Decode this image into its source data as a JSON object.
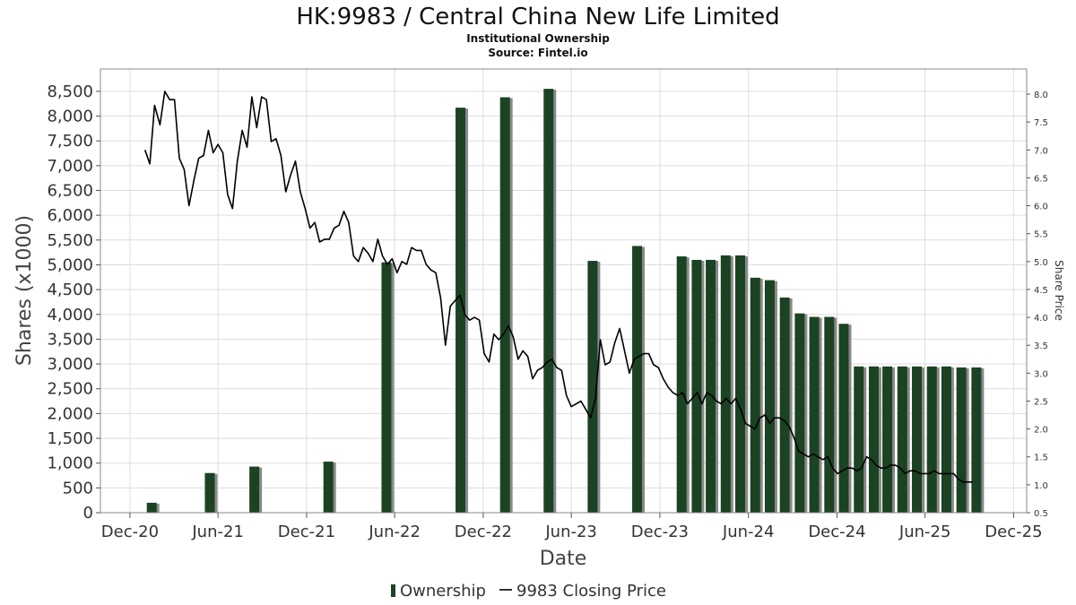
{
  "chart_data": {
    "type": "bar",
    "title": "HK:9983 / Central China New Life Limited",
    "subtitle": "Institutional Ownership",
    "source": "Source: Fintel.io",
    "xlabel": "Date",
    "ylabel": "Shares (x1000)",
    "ylabel_right": "Share Price",
    "ylim": [
      0,
      8950
    ],
    "ylim_right": [
      0.5,
      8.45
    ],
    "y_ticks": [
      "0",
      "500",
      "1,000",
      "1,500",
      "2,000",
      "2,500",
      "3,000",
      "3,500",
      "4,000",
      "4,500",
      "5,000",
      "5,500",
      "6,000",
      "6,500",
      "7,000",
      "7,500",
      "8,000",
      "8,500"
    ],
    "y_right_ticks": [
      "0.5",
      "1.0",
      "1.5",
      "2.0",
      "2.5",
      "3.0",
      "3.5",
      "4.0",
      "4.5",
      "5.0",
      "5.5",
      "6.0",
      "6.5",
      "7.0",
      "7.5",
      "8.0"
    ],
    "x_ticks": [
      "Dec-20",
      "Jun-21",
      "Dec-21",
      "Jun-22",
      "Dec-22",
      "Jun-23",
      "Dec-23",
      "Jun-24",
      "Dec-24",
      "Jun-25",
      "Dec-25"
    ],
    "grid": true,
    "legend_position": "bottom",
    "legend": [
      {
        "name": "Ownership",
        "symbol": "bar"
      },
      {
        "name": "9983 Closing Price",
        "symbol": "line"
      }
    ],
    "colors": {
      "bar": "#1b4323",
      "bar_shadow": "#8a8a8a",
      "line": "#000000",
      "grid": "#dddddd",
      "frame": "#888888"
    },
    "series": [
      {
        "name": "Ownership",
        "kind": "bar",
        "points": [
          {
            "x": "2021-01-15",
            "y": 200
          },
          {
            "x": "2021-05-15",
            "y": 800
          },
          {
            "x": "2021-08-15",
            "y": 930
          },
          {
            "x": "2022-01-15",
            "y": 1030
          },
          {
            "x": "2022-05-15",
            "y": 5050
          },
          {
            "x": "2022-10-15",
            "y": 8170
          },
          {
            "x": "2023-01-15",
            "y": 8380
          },
          {
            "x": "2023-04-15",
            "y": 8550
          },
          {
            "x": "2023-07-15",
            "y": 5080
          },
          {
            "x": "2023-10-15",
            "y": 5380
          },
          {
            "x": "2024-01-15",
            "y": 5170
          },
          {
            "x": "2024-02-15",
            "y": 5100
          },
          {
            "x": "2024-03-15",
            "y": 5100
          },
          {
            "x": "2024-04-15",
            "y": 5190
          },
          {
            "x": "2024-05-15",
            "y": 5190
          },
          {
            "x": "2024-06-15",
            "y": 4740
          },
          {
            "x": "2024-07-15",
            "y": 4690
          },
          {
            "x": "2024-08-15",
            "y": 4340
          },
          {
            "x": "2024-09-15",
            "y": 4020
          },
          {
            "x": "2024-10-15",
            "y": 3950
          },
          {
            "x": "2024-11-15",
            "y": 3950
          },
          {
            "x": "2024-12-15",
            "y": 3810
          },
          {
            "x": "2025-01-15",
            "y": 2950
          },
          {
            "x": "2025-02-15",
            "y": 2950
          },
          {
            "x": "2025-03-15",
            "y": 2950
          },
          {
            "x": "2025-04-15",
            "y": 2950
          },
          {
            "x": "2025-05-15",
            "y": 2950
          },
          {
            "x": "2025-06-15",
            "y": 2950
          },
          {
            "x": "2025-07-15",
            "y": 2950
          },
          {
            "x": "2025-08-15",
            "y": 2930
          },
          {
            "x": "2025-09-15",
            "y": 2930
          }
        ]
      },
      {
        "name": "9983 Closing Price",
        "kind": "line",
        "axis": "right",
        "points": [
          {
            "x": "2021-01-01",
            "y": 7.0
          },
          {
            "x": "2021-01-11",
            "y": 6.75
          },
          {
            "x": "2021-01-21",
            "y": 7.8
          },
          {
            "x": "2021-02-01",
            "y": 7.45
          },
          {
            "x": "2021-02-11",
            "y": 8.05
          },
          {
            "x": "2021-02-21",
            "y": 7.9
          },
          {
            "x": "2021-03-03",
            "y": 7.9
          },
          {
            "x": "2021-03-13",
            "y": 6.85
          },
          {
            "x": "2021-03-23",
            "y": 6.65
          },
          {
            "x": "2021-04-02",
            "y": 6.0
          },
          {
            "x": "2021-04-12",
            "y": 6.45
          },
          {
            "x": "2021-04-22",
            "y": 6.85
          },
          {
            "x": "2021-05-02",
            "y": 6.9
          },
          {
            "x": "2021-05-12",
            "y": 7.35
          },
          {
            "x": "2021-05-22",
            "y": 6.95
          },
          {
            "x": "2021-06-01",
            "y": 7.1
          },
          {
            "x": "2021-06-11",
            "y": 6.95
          },
          {
            "x": "2021-06-21",
            "y": 6.2
          },
          {
            "x": "2021-07-01",
            "y": 5.95
          },
          {
            "x": "2021-07-11",
            "y": 6.8
          },
          {
            "x": "2021-07-21",
            "y": 7.35
          },
          {
            "x": "2021-07-31",
            "y": 7.05
          },
          {
            "x": "2021-08-10",
            "y": 7.95
          },
          {
            "x": "2021-08-20",
            "y": 7.4
          },
          {
            "x": "2021-08-30",
            "y": 7.95
          },
          {
            "x": "2021-09-09",
            "y": 7.9
          },
          {
            "x": "2021-09-19",
            "y": 7.15
          },
          {
            "x": "2021-09-29",
            "y": 7.2
          },
          {
            "x": "2021-10-09",
            "y": 6.9
          },
          {
            "x": "2021-10-19",
            "y": 6.25
          },
          {
            "x": "2021-10-29",
            "y": 6.55
          },
          {
            "x": "2021-11-08",
            "y": 6.8
          },
          {
            "x": "2021-11-18",
            "y": 6.25
          },
          {
            "x": "2021-11-28",
            "y": 5.95
          },
          {
            "x": "2021-12-08",
            "y": 5.6
          },
          {
            "x": "2021-12-18",
            "y": 5.7
          },
          {
            "x": "2021-12-28",
            "y": 5.35
          },
          {
            "x": "2022-01-07",
            "y": 5.4
          },
          {
            "x": "2022-01-17",
            "y": 5.4
          },
          {
            "x": "2022-01-27",
            "y": 5.6
          },
          {
            "x": "2022-02-06",
            "y": 5.65
          },
          {
            "x": "2022-02-16",
            "y": 5.9
          },
          {
            "x": "2022-02-26",
            "y": 5.7
          },
          {
            "x": "2022-03-08",
            "y": 5.1
          },
          {
            "x": "2022-03-18",
            "y": 5.0
          },
          {
            "x": "2022-03-28",
            "y": 5.25
          },
          {
            "x": "2022-04-07",
            "y": 5.15
          },
          {
            "x": "2022-04-17",
            "y": 5.0
          },
          {
            "x": "2022-04-27",
            "y": 5.4
          },
          {
            "x": "2022-05-07",
            "y": 5.1
          },
          {
            "x": "2022-05-17",
            "y": 4.95
          },
          {
            "x": "2022-05-27",
            "y": 5.05
          },
          {
            "x": "2022-06-06",
            "y": 4.8
          },
          {
            "x": "2022-06-16",
            "y": 5.0
          },
          {
            "x": "2022-06-26",
            "y": 4.95
          },
          {
            "x": "2022-07-06",
            "y": 5.25
          },
          {
            "x": "2022-07-16",
            "y": 5.2
          },
          {
            "x": "2022-07-26",
            "y": 5.2
          },
          {
            "x": "2022-08-05",
            "y": 4.95
          },
          {
            "x": "2022-08-15",
            "y": 4.85
          },
          {
            "x": "2022-08-25",
            "y": 4.8
          },
          {
            "x": "2022-09-04",
            "y": 4.35
          },
          {
            "x": "2022-09-14",
            "y": 3.5
          },
          {
            "x": "2022-09-24",
            "y": 4.2
          },
          {
            "x": "2022-10-04",
            "y": 4.3
          },
          {
            "x": "2022-10-14",
            "y": 4.4
          },
          {
            "x": "2022-10-24",
            "y": 4.05
          },
          {
            "x": "2022-11-03",
            "y": 3.95
          },
          {
            "x": "2022-11-13",
            "y": 4.0
          },
          {
            "x": "2022-11-23",
            "y": 3.95
          },
          {
            "x": "2022-12-03",
            "y": 3.35
          },
          {
            "x": "2022-12-13",
            "y": 3.2
          },
          {
            "x": "2022-12-23",
            "y": 3.7
          },
          {
            "x": "2023-01-02",
            "y": 3.6
          },
          {
            "x": "2023-01-12",
            "y": 3.7
          },
          {
            "x": "2023-01-22",
            "y": 3.85
          },
          {
            "x": "2023-02-01",
            "y": 3.65
          },
          {
            "x": "2023-02-11",
            "y": 3.25
          },
          {
            "x": "2023-02-21",
            "y": 3.4
          },
          {
            "x": "2023-03-03",
            "y": 3.3
          },
          {
            "x": "2023-03-13",
            "y": 2.9
          },
          {
            "x": "2023-03-23",
            "y": 3.05
          },
          {
            "x": "2023-04-02",
            "y": 3.1
          },
          {
            "x": "2023-04-12",
            "y": 3.2
          },
          {
            "x": "2023-04-22",
            "y": 3.25
          },
          {
            "x": "2023-05-02",
            "y": 3.1
          },
          {
            "x": "2023-05-12",
            "y": 3.05
          },
          {
            "x": "2023-05-22",
            "y": 2.6
          },
          {
            "x": "2023-06-01",
            "y": 2.4
          },
          {
            "x": "2023-06-11",
            "y": 2.45
          },
          {
            "x": "2023-06-21",
            "y": 2.5
          },
          {
            "x": "2023-07-01",
            "y": 2.35
          },
          {
            "x": "2023-07-11",
            "y": 2.2
          },
          {
            "x": "2023-07-21",
            "y": 2.55
          },
          {
            "x": "2023-07-31",
            "y": 3.6
          },
          {
            "x": "2023-08-10",
            "y": 3.15
          },
          {
            "x": "2023-08-20",
            "y": 3.2
          },
          {
            "x": "2023-08-30",
            "y": 3.55
          },
          {
            "x": "2023-09-09",
            "y": 3.8
          },
          {
            "x": "2023-09-19",
            "y": 3.4
          },
          {
            "x": "2023-09-29",
            "y": 3.0
          },
          {
            "x": "2023-10-09",
            "y": 3.25
          },
          {
            "x": "2023-10-19",
            "y": 3.3
          },
          {
            "x": "2023-10-29",
            "y": 3.35
          },
          {
            "x": "2023-11-08",
            "y": 3.35
          },
          {
            "x": "2023-11-18",
            "y": 3.15
          },
          {
            "x": "2023-11-28",
            "y": 3.1
          },
          {
            "x": "2023-12-08",
            "y": 2.9
          },
          {
            "x": "2023-12-18",
            "y": 2.75
          },
          {
            "x": "2023-12-28",
            "y": 2.65
          },
          {
            "x": "2024-01-07",
            "y": 2.6
          },
          {
            "x": "2024-01-17",
            "y": 2.65
          },
          {
            "x": "2024-01-27",
            "y": 2.45
          },
          {
            "x": "2024-02-06",
            "y": 2.55
          },
          {
            "x": "2024-02-16",
            "y": 2.65
          },
          {
            "x": "2024-02-26",
            "y": 2.45
          },
          {
            "x": "2024-03-07",
            "y": 2.65
          },
          {
            "x": "2024-03-17",
            "y": 2.6
          },
          {
            "x": "2024-03-27",
            "y": 2.5
          },
          {
            "x": "2024-04-06",
            "y": 2.45
          },
          {
            "x": "2024-04-16",
            "y": 2.55
          },
          {
            "x": "2024-04-26",
            "y": 2.45
          },
          {
            "x": "2024-05-06",
            "y": 2.55
          },
          {
            "x": "2024-05-16",
            "y": 2.35
          },
          {
            "x": "2024-05-26",
            "y": 2.1
          },
          {
            "x": "2024-06-05",
            "y": 2.05
          },
          {
            "x": "2024-06-15",
            "y": 2.0
          },
          {
            "x": "2024-06-25",
            "y": 2.2
          },
          {
            "x": "2024-07-05",
            "y": 2.25
          },
          {
            "x": "2024-07-15",
            "y": 2.1
          },
          {
            "x": "2024-07-25",
            "y": 2.2
          },
          {
            "x": "2024-08-04",
            "y": 2.2
          },
          {
            "x": "2024-08-14",
            "y": 2.15
          },
          {
            "x": "2024-08-24",
            "y": 2.05
          },
          {
            "x": "2024-09-03",
            "y": 1.85
          },
          {
            "x": "2024-09-13",
            "y": 1.6
          },
          {
            "x": "2024-09-23",
            "y": 1.55
          },
          {
            "x": "2024-10-03",
            "y": 1.5
          },
          {
            "x": "2024-10-13",
            "y": 1.55
          },
          {
            "x": "2024-10-23",
            "y": 1.5
          },
          {
            "x": "2024-11-02",
            "y": 1.45
          },
          {
            "x": "2024-11-12",
            "y": 1.5
          },
          {
            "x": "2024-11-22",
            "y": 1.3
          },
          {
            "x": "2024-12-02",
            "y": 1.2
          },
          {
            "x": "2024-12-12",
            "y": 1.25
          },
          {
            "x": "2024-12-22",
            "y": 1.3
          },
          {
            "x": "2025-01-01",
            "y": 1.3
          },
          {
            "x": "2025-01-11",
            "y": 1.25
          },
          {
            "x": "2025-01-21",
            "y": 1.3
          },
          {
            "x": "2025-01-31",
            "y": 1.5
          },
          {
            "x": "2025-02-10",
            "y": 1.45
          },
          {
            "x": "2025-02-20",
            "y": 1.35
          },
          {
            "x": "2025-03-02",
            "y": 1.3
          },
          {
            "x": "2025-03-12",
            "y": 1.3
          },
          {
            "x": "2025-03-22",
            "y": 1.35
          },
          {
            "x": "2025-04-01",
            "y": 1.35
          },
          {
            "x": "2025-04-11",
            "y": 1.3
          },
          {
            "x": "2025-04-21",
            "y": 1.2
          },
          {
            "x": "2025-05-01",
            "y": 1.25
          },
          {
            "x": "2025-05-11",
            "y": 1.25
          },
          {
            "x": "2025-05-21",
            "y": 1.2
          },
          {
            "x": "2025-05-31",
            "y": 1.2
          },
          {
            "x": "2025-06-10",
            "y": 1.2
          },
          {
            "x": "2025-06-20",
            "y": 1.25
          },
          {
            "x": "2025-06-30",
            "y": 1.2
          },
          {
            "x": "2025-07-10",
            "y": 1.2
          },
          {
            "x": "2025-07-20",
            "y": 1.2
          },
          {
            "x": "2025-07-30",
            "y": 1.2
          },
          {
            "x": "2025-08-09",
            "y": 1.1
          },
          {
            "x": "2025-08-19",
            "y": 1.05
          },
          {
            "x": "2025-08-29",
            "y": 1.05
          },
          {
            "x": "2025-09-08",
            "y": 1.05
          }
        ]
      }
    ]
  }
}
